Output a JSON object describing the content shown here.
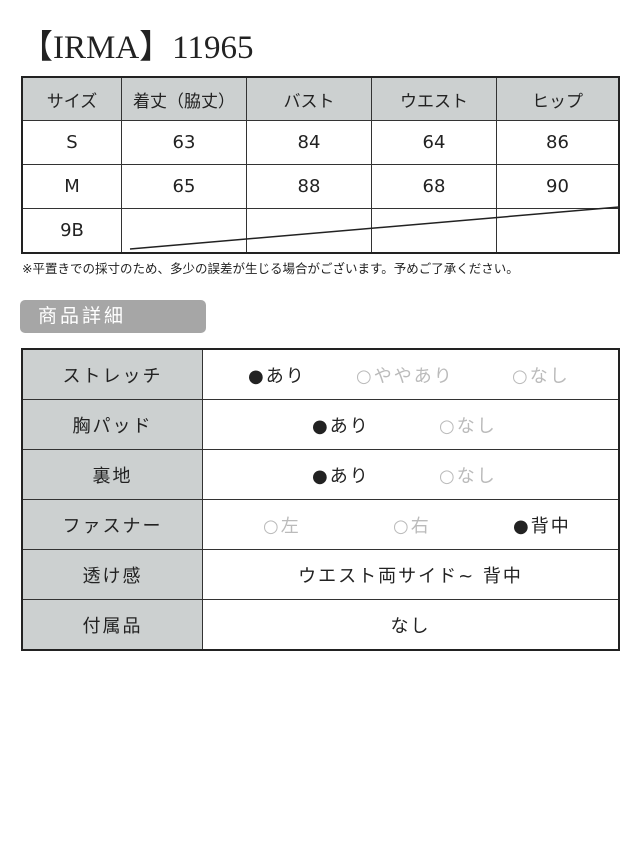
{
  "title": "【IRMA】11965",
  "size_table": {
    "headers": [
      "サイズ",
      "着丈（脇丈）",
      "バスト",
      "ウエスト",
      "ヒップ"
    ],
    "rows": [
      {
        "size": "S",
        "values": [
          "63",
          "84",
          "64",
          "86"
        ]
      },
      {
        "size": "M",
        "values": [
          "65",
          "88",
          "68",
          "90"
        ]
      },
      {
        "size": "9B",
        "values": [
          "",
          "",
          "",
          ""
        ]
      }
    ]
  },
  "note": "※平置きでの採寸のため、多少の誤差が生じる場合がございます。予めご了承ください。",
  "details_heading": "商品詳細",
  "details": {
    "stretch": {
      "label": "ストレッチ",
      "options": [
        "●あり",
        "○ややあり",
        "○なし"
      ]
    },
    "pad": {
      "label": "胸パッド",
      "options": [
        "●あり",
        "○なし"
      ]
    },
    "lining": {
      "label": "裏地",
      "options": [
        "●あり",
        "○なし"
      ]
    },
    "fastener": {
      "label": "ファスナー",
      "options": [
        "○左",
        "○右",
        "●背中"
      ]
    },
    "sheer": {
      "label": "透け感",
      "value": "ウエスト両サイド~ 背中"
    },
    "accessories": {
      "label": "付属品",
      "value": "なし"
    }
  }
}
